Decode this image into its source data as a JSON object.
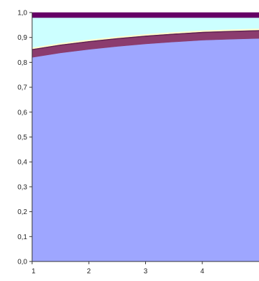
{
  "chart_data": {
    "type": "area",
    "stacked": true,
    "x": [
      1,
      1.5,
      2,
      2.5,
      3,
      3.5,
      4,
      4.5,
      5
    ],
    "x_tick_labels": [
      "1",
      "2",
      "3",
      "4"
    ],
    "x_ticks": [
      1,
      2,
      3,
      4
    ],
    "y_tick_labels": [
      "0,0",
      "0,1",
      "0,2",
      "0,3",
      "0,4",
      "0,5",
      "0,6",
      "0,7",
      "0,8",
      "0,9",
      "1,0"
    ],
    "ylim": [
      0,
      1.0
    ],
    "xlim": [
      1,
      5
    ],
    "grid": false,
    "legend": "none",
    "series": [
      {
        "color": "#9ea6ff",
        "values": [
          0.82,
          0.838,
          0.852,
          0.864,
          0.874,
          0.882,
          0.889,
          0.893,
          0.896
        ]
      },
      {
        "color": "#8b3c6e",
        "values": [
          0.03,
          0.03,
          0.03,
          0.03,
          0.03,
          0.03,
          0.03,
          0.03,
          0.03
        ]
      },
      {
        "color": "#5e2050",
        "values": [
          0.004,
          0.004,
          0.004,
          0.004,
          0.004,
          0.004,
          0.004,
          0.004,
          0.004
        ]
      },
      {
        "color": "#ffffcc",
        "values": [
          0.006,
          0.006,
          0.006,
          0.006,
          0.006,
          0.006,
          0.006,
          0.006,
          0.006
        ]
      },
      {
        "color": "#ccffff",
        "values": [
          0.12,
          0.102,
          0.088,
          0.076,
          0.066,
          0.058,
          0.051,
          0.047,
          0.044
        ]
      },
      {
        "color": "#660066",
        "values": [
          0.02,
          0.02,
          0.02,
          0.02,
          0.02,
          0.02,
          0.02,
          0.02,
          0.02
        ]
      }
    ]
  }
}
